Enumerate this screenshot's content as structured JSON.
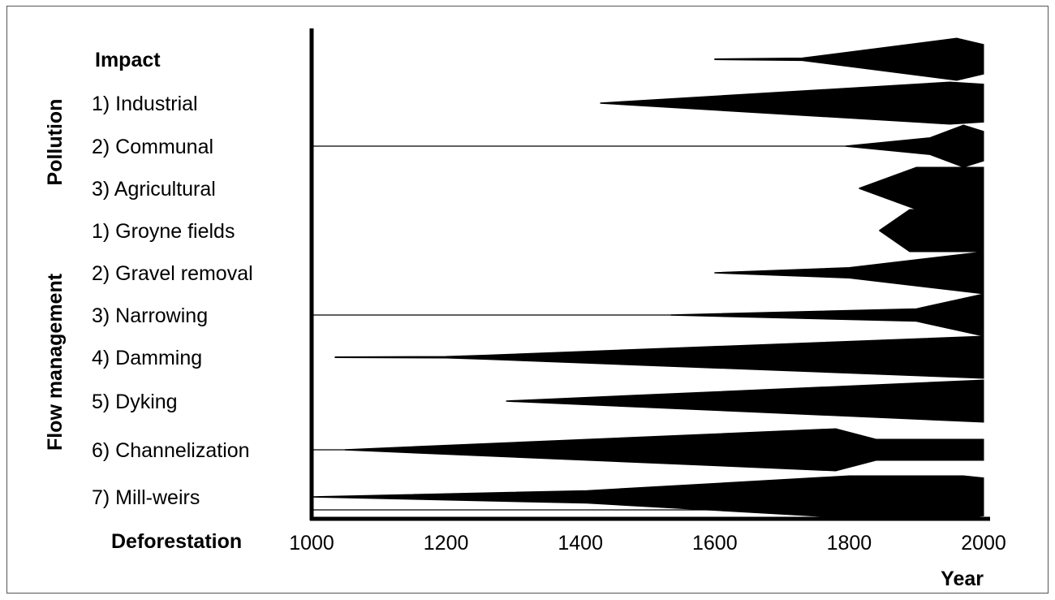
{
  "chart_data": {
    "type": "area",
    "title": "",
    "header_label": "Impact",
    "xlabel": "Year",
    "ylabel_groups": [
      {
        "name": "Pollution"
      },
      {
        "name": "Flow management"
      }
    ],
    "xlim": [
      1000,
      2000
    ],
    "xticks": [
      "1000",
      "1200",
      "1400",
      "1600",
      "1800",
      "2000"
    ],
    "grid": false,
    "rows": [
      {
        "label": "Impact",
        "group": "",
        "profile": [
          [
            1600,
            0.02
          ],
          [
            1730,
            0.06
          ],
          [
            1960,
            1.0
          ],
          [
            2000,
            0.7
          ]
        ]
      },
      {
        "label": "1) Industrial",
        "group": "Pollution",
        "profile": [
          [
            1430,
            0.0
          ],
          [
            1950,
            1.0
          ],
          [
            2000,
            0.9
          ]
        ]
      },
      {
        "label": "2) Communal",
        "group": "Pollution",
        "profile": [
          [
            1795,
            0.0
          ],
          [
            1920,
            0.4
          ],
          [
            1970,
            1.0
          ],
          [
            2000,
            0.7
          ]
        ]
      },
      {
        "label": "3) Agricultural",
        "group": "Pollution",
        "profile": [
          [
            1815,
            0.0
          ],
          [
            1900,
            1.0
          ],
          [
            2000,
            1.0
          ]
        ]
      },
      {
        "label": "1) Groyne fields",
        "group": "Flow management",
        "profile": [
          [
            1845,
            0.0
          ],
          [
            1890,
            1.0
          ],
          [
            2000,
            1.0
          ]
        ]
      },
      {
        "label": "2) Gravel removal",
        "group": "Flow management",
        "profile": [
          [
            1600,
            0.0
          ],
          [
            1800,
            0.25
          ],
          [
            2000,
            1.0
          ]
        ]
      },
      {
        "label": "3) Narrowing",
        "group": "Flow management",
        "profile": [
          [
            1535,
            0.0
          ],
          [
            1900,
            0.3
          ],
          [
            2000,
            1.0
          ]
        ]
      },
      {
        "label": "4) Damming",
        "group": "Flow management",
        "profile": [
          [
            1035,
            0.02
          ],
          [
            1200,
            0.04
          ],
          [
            1260,
            0.1
          ],
          [
            2000,
            1.0
          ]
        ]
      },
      {
        "label": "5) Dyking",
        "group": "Flow management",
        "profile": [
          [
            1290,
            0.0
          ],
          [
            2000,
            1.0
          ]
        ]
      },
      {
        "label": "6) Channelization",
        "group": "Flow management",
        "profile": [
          [
            1050,
            0.0
          ],
          [
            1780,
            1.0
          ],
          [
            1840,
            0.5
          ],
          [
            2000,
            0.5
          ]
        ]
      },
      {
        "label": "7) Mill-weirs",
        "group": "Flow management",
        "profile": [
          [
            1000,
            0.0
          ],
          [
            1410,
            0.3
          ],
          [
            1800,
            1.0
          ],
          [
            1970,
            1.0
          ],
          [
            2000,
            0.9
          ]
        ]
      },
      {
        "label": "Deforestation",
        "group": "",
        "profile": []
      }
    ],
    "reference_lines_after_rows": [
      "2) Communal",
      "3) Narrowing",
      "6) Channelization"
    ]
  }
}
